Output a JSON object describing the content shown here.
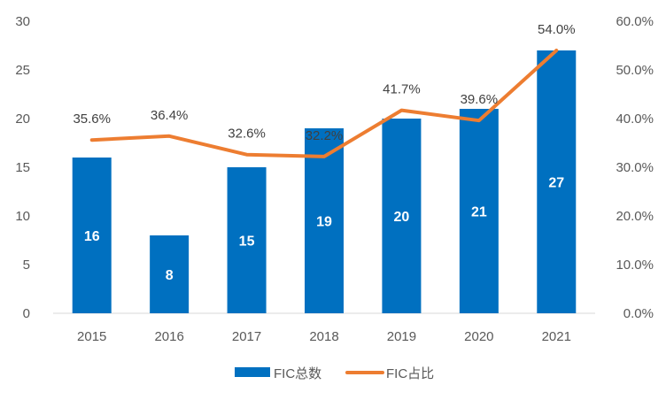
{
  "chart_data": {
    "type": "bar",
    "categories": [
      "2015",
      "2016",
      "2017",
      "2018",
      "2019",
      "2020",
      "2021"
    ],
    "series": [
      {
        "name": "FIC总数",
        "type": "bar",
        "axis": "left",
        "color": "#0070C0",
        "values": [
          16,
          8,
          15,
          19,
          20,
          21,
          27
        ],
        "labels": [
          "16",
          "8",
          "15",
          "19",
          "20",
          "21",
          "27"
        ]
      },
      {
        "name": "FIC占比",
        "type": "line",
        "axis": "right",
        "color": "#ED7D31",
        "values": [
          35.6,
          36.4,
          32.6,
          32.2,
          41.7,
          39.6,
          54.0
        ],
        "labels": [
          "35.6%",
          "36.4%",
          "32.6%",
          "32.2%",
          "41.7%",
          "39.6%",
          "54.0%"
        ]
      }
    ],
    "y_left": {
      "min": 0,
      "max": 30,
      "ticks": [
        "0",
        "5",
        "10",
        "15",
        "20",
        "25",
        "30"
      ]
    },
    "y_right": {
      "min": 0,
      "max": 60,
      "ticks": [
        "0.0%",
        "10.0%",
        "20.0%",
        "30.0%",
        "40.0%",
        "50.0%",
        "60.0%"
      ]
    },
    "grid": false,
    "legend_position": "bottom"
  }
}
